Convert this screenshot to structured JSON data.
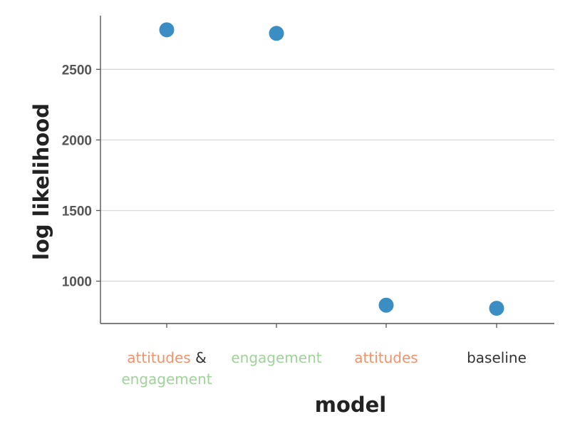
{
  "chart_data": {
    "type": "scatter",
    "xlabel": "model",
    "ylabel": "log likelihood",
    "ylim": [
      700,
      2880
    ],
    "yticks": [
      1000,
      1500,
      2000,
      2500
    ],
    "ytick_labels": [
      "1000",
      "1500",
      "2000",
      "2500"
    ],
    "grid": "horizontal",
    "categories": [
      {
        "lines": [
          [
            {
              "text": "attitudes",
              "color": "#f0936b"
            },
            {
              "text": " &",
              "color": "#333333"
            }
          ],
          [
            {
              "text": "engagement",
              "color": "#9fd39a"
            }
          ]
        ]
      },
      {
        "lines": [
          [
            {
              "text": "engagement",
              "color": "#9fd39a"
            }
          ]
        ]
      },
      {
        "lines": [
          [
            {
              "text": "attitudes",
              "color": "#f0936b"
            }
          ]
        ]
      },
      {
        "lines": [
          [
            {
              "text": "baseline",
              "color": "#333333"
            }
          ]
        ]
      }
    ],
    "values": [
      2780,
      2755,
      830,
      808
    ],
    "colors": {
      "point": "#3b8ec4",
      "grid": "#d9d9d9",
      "axis": "#555555"
    }
  }
}
